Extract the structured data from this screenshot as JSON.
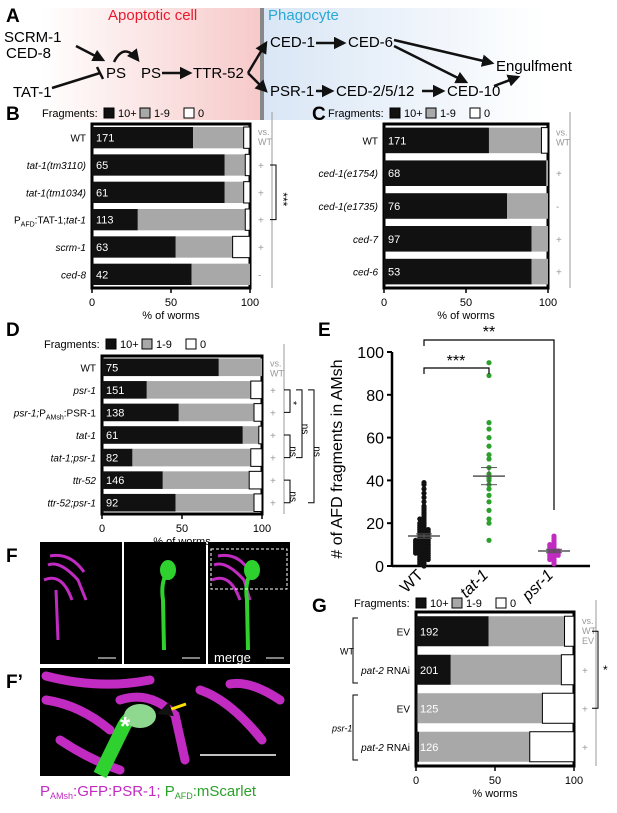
{
  "colors": {
    "black": "#111111",
    "gray": "#a8a8a8",
    "white": "#ffffff",
    "red": "#e8192c",
    "cyan": "#29a8d8",
    "magenta": "#c12bc2",
    "green": "#2ba02b",
    "lightgray": "#999999"
  },
  "panel_labels": {
    "A": "A",
    "B": "B",
    "C": "C",
    "D": "D",
    "E": "E",
    "F": "F",
    "Fp": "F’",
    "G": "G"
  },
  "panelA": {
    "apoptotic_cell": "Apoptotic cell",
    "phagocyte": "Phagocyte",
    "scrm1": "SCRM-1",
    "ced8": "CED-8",
    "tat1": "TAT-1",
    "ps1": "PS",
    "ps2": "PS",
    "ttr52": "TTR-52",
    "ced1": "CED-1",
    "ced6": "CED-6",
    "psr1": "PSR-1",
    "ced2512": "CED-2/5/12",
    "ced10": "CED-10",
    "engulfment": "Engulfment"
  },
  "legend": {
    "title": "Fragments:",
    "l1": "10+",
    "l2": "1-9",
    "l3": "0"
  },
  "chart_data": [
    {
      "type": "bar",
      "panel": "B",
      "orientation": "horizontal",
      "stacked": true,
      "categories": [
        "WT",
        "tat-1(tm3110)",
        "tat-1(tm1034)",
        "PAFD:TAT-1;tat-1",
        "scrm-1",
        "ced-8"
      ],
      "n": [
        "171",
        "65",
        "61",
        "113",
        "63",
        "42"
      ],
      "series": [
        {
          "name": "10+",
          "values": [
            64,
            84,
            84,
            29,
            53,
            63
          ]
        },
        {
          "name": "1-9",
          "values": [
            32,
            13,
            12,
            68,
            36,
            37
          ]
        },
        {
          "name": "0",
          "values": [
            4,
            3,
            4,
            3,
            11,
            0
          ]
        }
      ],
      "signs": [
        "vs.\nWT",
        "+",
        "+",
        "+",
        "+",
        "-"
      ],
      "xlabel": "% of worms",
      "xticks": [
        "0",
        "50",
        "100"
      ],
      "xlim": [
        0,
        100
      ],
      "sig": "***"
    },
    {
      "type": "bar",
      "panel": "C",
      "orientation": "horizontal",
      "stacked": true,
      "categories": [
        "WT",
        "ced-1(e1754)",
        "ced-1(e1735)",
        "ced-7",
        "ced-6"
      ],
      "n": [
        "171",
        "68",
        "76",
        "97",
        "53"
      ],
      "series": [
        {
          "name": "10+",
          "values": [
            64,
            99,
            75,
            90,
            90
          ]
        },
        {
          "name": "1-9",
          "values": [
            32,
            1,
            25,
            10,
            10
          ]
        },
        {
          "name": "0",
          "values": [
            4,
            0,
            0,
            0,
            0
          ]
        }
      ],
      "signs": [
        "vs.\nWT",
        "+",
        "-",
        "+",
        "+"
      ],
      "xlabel": "% of worms",
      "xticks": [
        "0",
        "50",
        "100"
      ],
      "xlim": [
        0,
        100
      ]
    },
    {
      "type": "bar",
      "panel": "D",
      "orientation": "horizontal",
      "stacked": true,
      "categories": [
        "WT",
        "psr-1",
        "psr-1;PAMsh:PSR-1",
        "tat-1",
        "tat-1;psr-1",
        "ttr-52",
        "ttr-52;psr-1"
      ],
      "n": [
        "75",
        "151",
        "138",
        "61",
        "82",
        "146",
        "92"
      ],
      "series": [
        {
          "name": "10+",
          "values": [
            73,
            28,
            48,
            88,
            19,
            38,
            46
          ]
        },
        {
          "name": "1-9",
          "values": [
            27,
            65,
            47,
            10,
            74,
            54,
            49
          ]
        },
        {
          "name": "0",
          "values": [
            0,
            7,
            5,
            2,
            7,
            8,
            5
          ]
        }
      ],
      "signs": [
        "vs.\nWT",
        "+",
        "+",
        "+",
        "+",
        "+",
        "+"
      ],
      "xlabel": "% of worms",
      "xticks": [
        "0",
        "50",
        "100"
      ],
      "xlim": [
        0,
        100
      ],
      "sig": [
        "*",
        "ns",
        "ns",
        "ns",
        "ns"
      ]
    },
    {
      "type": "scatter",
      "panel": "E",
      "categories": [
        "WT",
        "tat-1",
        "psr-1"
      ],
      "ylabel": "# of AFD fragments in AMsh",
      "yticks": [
        "0",
        "20",
        "40",
        "60",
        "80",
        "100"
      ],
      "ylim": [
        0,
        100
      ],
      "means": [
        14,
        42,
        7
      ],
      "sem": [
        1,
        4,
        0.8
      ],
      "sig": [
        "***",
        "**"
      ],
      "series": [
        {
          "values": [
            0,
            1,
            1,
            2,
            2,
            3,
            3,
            3,
            4,
            4,
            4,
            5,
            5,
            5,
            6,
            6,
            6,
            6,
            7,
            7,
            7,
            7,
            8,
            8,
            8,
            8,
            9,
            9,
            9,
            9,
            10,
            10,
            10,
            10,
            11,
            11,
            11,
            11,
            12,
            12,
            12,
            12,
            13,
            13,
            13,
            14,
            14,
            14,
            15,
            15,
            15,
            16,
            16,
            16,
            17,
            17,
            17,
            18,
            18,
            19,
            19,
            20,
            20,
            21,
            22,
            22,
            23,
            24,
            25,
            26,
            27,
            28,
            30,
            32,
            34,
            36,
            38,
            39
          ]
        },
        {
          "values": [
            12,
            20,
            22,
            26,
            30,
            33,
            36,
            38,
            40,
            41,
            42,
            43,
            46,
            50,
            52,
            56,
            60,
            64,
            67,
            89,
            95
          ]
        },
        {
          "values": [
            1,
            2,
            3,
            3,
            4,
            4,
            5,
            5,
            5,
            6,
            6,
            6,
            7,
            7,
            7,
            8,
            8,
            9,
            9,
            10,
            10,
            11,
            12,
            13,
            14
          ]
        }
      ]
    },
    {
      "type": "bar",
      "panel": "G",
      "orientation": "horizontal",
      "stacked": true,
      "categories": [
        "EV",
        "pat-2 RNAi",
        "EV",
        "pat-2 RNAi"
      ],
      "groups": [
        "WT",
        "WT",
        "psr-1",
        "psr-1"
      ],
      "n": [
        "192",
        "201",
        "125",
        "126"
      ],
      "series": [
        {
          "name": "10+",
          "values": [
            46,
            22,
            1,
            2
          ]
        },
        {
          "name": "1-9",
          "values": [
            48,
            70,
            79,
            70
          ]
        },
        {
          "name": "0",
          "values": [
            6,
            8,
            20,
            28
          ]
        }
      ],
      "signs": [
        "vs.\nWT\nEV",
        "+",
        "+",
        "+"
      ],
      "xlabel": "% worms",
      "xticks": [
        "0",
        "50",
        "100"
      ],
      "xlim": [
        0,
        100
      ],
      "sig": "*"
    }
  ],
  "panelB_cats_html": [
    "WT",
    "<tspan font-style='italic'>tat-1(tm3110)</tspan>",
    "<tspan font-style='italic'>tat-1(tm1034)</tspan>",
    "P<tspan font-size='7' dy='3'>AFD</tspan><tspan dy='-3'>:TAT-1;</tspan><tspan font-style='italic'>tat-1</tspan>",
    "<tspan font-style='italic'>scrm-1</tspan>",
    "<tspan font-style='italic'>ced-8</tspan>"
  ],
  "panelF": {
    "merge": "merge",
    "caption_a": "P",
    "caption_a_sub": "AMsh",
    "caption_a_rest": ":GFP:PSR-1; ",
    "caption_b": "P",
    "caption_b_sub": "AFD",
    "caption_b_rest": ":mScarlet"
  },
  "panelG_groups": {
    "wt": "WT",
    "psr1": "psr-1"
  }
}
